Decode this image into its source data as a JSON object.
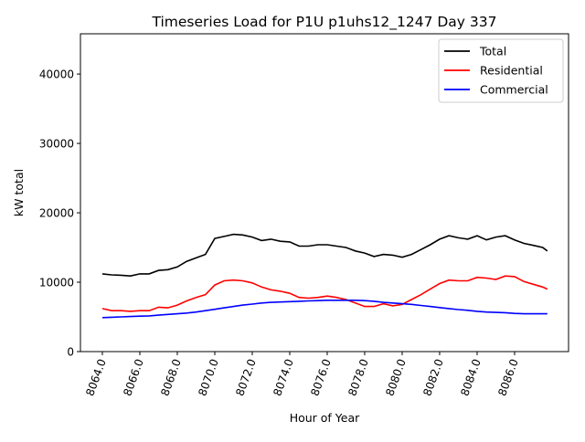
{
  "chart_data": {
    "type": "line",
    "title": "Timeseries Load for P1U p1uhs12_1247  Day 337",
    "xlabel": "Hour of Year",
    "ylabel": "kW total",
    "xlim": [
      8062.83,
      8088.88
    ],
    "ylim": [
      0,
      45800
    ],
    "xticks": [
      8064,
      8066,
      8068,
      8070,
      8072,
      8074,
      8076,
      8078,
      8080,
      8082,
      8084,
      8086
    ],
    "xtick_labels": [
      "8064.0",
      "8066.0",
      "8068.0",
      "8070.0",
      "8072.0",
      "8074.0",
      "8076.0",
      "8078.0",
      "8080.0",
      "8082.0",
      "8084.0",
      "8086.0"
    ],
    "yticks": [
      0,
      10000,
      20000,
      30000,
      40000
    ],
    "ytick_labels": [
      "0",
      "10000",
      "20000",
      "30000",
      "40000"
    ],
    "grid": false,
    "legend_position": "top-right",
    "x": [
      8064,
      8064.5,
      8065,
      8065.5,
      8066,
      8066.5,
      8067,
      8067.5,
      8068,
      8068.5,
      8069,
      8069.5,
      8070,
      8070.5,
      8071,
      8071.5,
      8072,
      8072.5,
      8073,
      8073.5,
      8074,
      8074.5,
      8075,
      8075.5,
      8076,
      8076.5,
      8077,
      8077.5,
      8078,
      8078.5,
      8079,
      8079.5,
      8080,
      8080.5,
      8081,
      8081.5,
      8082,
      8082.5,
      8083,
      8083.5,
      8084,
      8084.5,
      8085,
      8085.5,
      8086,
      8086.5,
      8087,
      8087.5,
      8087.75
    ],
    "series": [
      {
        "name": "Total",
        "color": "#000000",
        "values": [
          11200,
          11050,
          11000,
          10900,
          11200,
          11200,
          11700,
          11800,
          12200,
          13000,
          13500,
          14000,
          16300,
          16600,
          16900,
          16800,
          16500,
          16000,
          16200,
          15900,
          15800,
          15200,
          15200,
          15400,
          15400,
          15200,
          15000,
          14500,
          14200,
          13700,
          14000,
          13900,
          13600,
          14000,
          14700,
          15400,
          16200,
          16700,
          16400,
          16200,
          16700,
          16100,
          16500,
          16700,
          16100,
          15600,
          15300,
          15000,
          14500
        ]
      },
      {
        "name": "Residential",
        "color": "#ff0000",
        "values": [
          6200,
          5900,
          5900,
          5800,
          5900,
          5900,
          6400,
          6300,
          6700,
          7300,
          7800,
          8200,
          9600,
          10200,
          10300,
          10200,
          9900,
          9300,
          8900,
          8700,
          8400,
          7800,
          7700,
          7800,
          8000,
          7800,
          7500,
          7000,
          6500,
          6500,
          6900,
          6600,
          6800,
          7500,
          8200,
          9000,
          9800,
          10300,
          10200,
          10200,
          10700,
          10600,
          10400,
          10900,
          10800,
          10100,
          9700,
          9300,
          9000
        ]
      },
      {
        "name": "Commercial",
        "color": "#0000ff",
        "values": [
          4900,
          4950,
          5000,
          5050,
          5100,
          5150,
          5250,
          5350,
          5450,
          5550,
          5700,
          5900,
          6100,
          6300,
          6500,
          6700,
          6850,
          7000,
          7100,
          7150,
          7200,
          7250,
          7300,
          7350,
          7400,
          7400,
          7400,
          7400,
          7350,
          7250,
          7100,
          7000,
          6900,
          6800,
          6650,
          6500,
          6350,
          6200,
          6050,
          5950,
          5800,
          5700,
          5650,
          5600,
          5500,
          5450,
          5450,
          5450,
          5450
        ]
      }
    ]
  }
}
